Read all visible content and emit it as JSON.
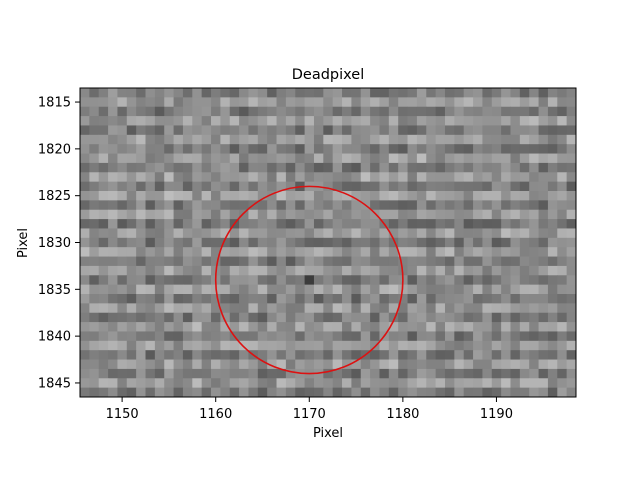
{
  "chart_data": {
    "type": "heatmap",
    "title": "Deadpixel",
    "xlabel": "Pixel",
    "ylabel": "Pixel",
    "xlim": [
      1145.5,
      1198.5
    ],
    "ylim": [
      1846.5,
      1813.5
    ],
    "x_range": [
      1146,
      1198
    ],
    "y_range": [
      1814,
      1846
    ],
    "xticks": [
      1150,
      1160,
      1170,
      1180,
      1190
    ],
    "yticks": [
      1815,
      1820,
      1825,
      1830,
      1835,
      1840,
      1845
    ],
    "colormap": "gray",
    "grid": false,
    "annotation": {
      "type": "circle",
      "center": [
        1170,
        1834
      ],
      "radius": 10,
      "color": "#dd1111"
    },
    "highlight_pixel": [
      1170,
      1834
    ]
  }
}
